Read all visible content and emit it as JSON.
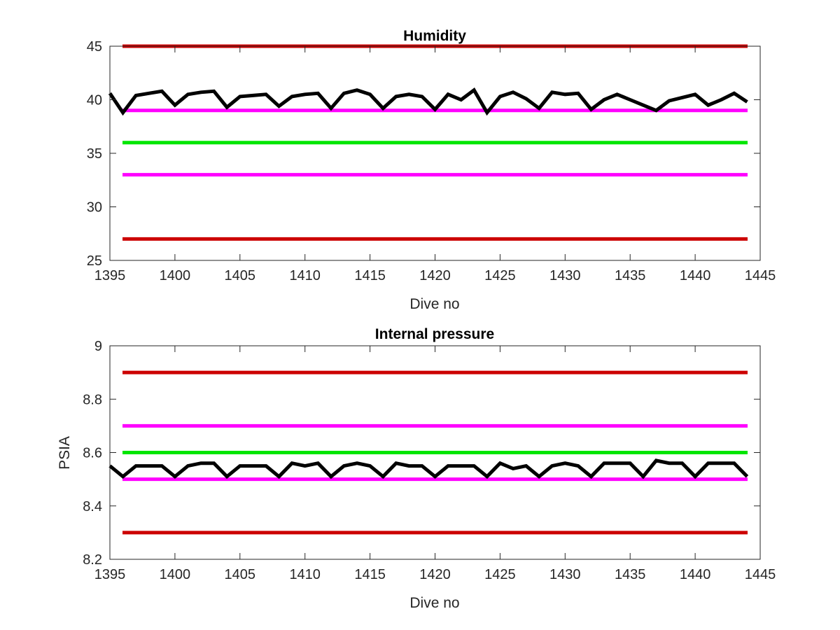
{
  "chart_data": [
    {
      "type": "line",
      "title": "Humidity",
      "xlabel": "Dive no",
      "ylabel": "",
      "xlim": [
        1395,
        1445
      ],
      "ylim": [
        25,
        45
      ],
      "xticks": [
        1395,
        1400,
        1405,
        1410,
        1415,
        1420,
        1425,
        1430,
        1435,
        1440,
        1445
      ],
      "yticks": [
        25,
        30,
        35,
        40,
        45
      ],
      "grid": false,
      "series": [
        {
          "color": "#000000",
          "x": [
            1395,
            1396,
            1397,
            1398,
            1399,
            1400,
            1401,
            1402,
            1403,
            1404,
            1405,
            1406,
            1407,
            1408,
            1409,
            1410,
            1411,
            1412,
            1413,
            1414,
            1415,
            1416,
            1417,
            1418,
            1419,
            1420,
            1421,
            1422,
            1423,
            1424,
            1425,
            1426,
            1427,
            1428,
            1429,
            1430,
            1431,
            1432,
            1433,
            1434,
            1435,
            1436,
            1437,
            1438,
            1439,
            1440,
            1441,
            1442,
            1443,
            1444
          ],
          "values": [
            40.6,
            38.8,
            40.4,
            40.6,
            40.8,
            39.5,
            40.5,
            40.7,
            40.8,
            39.3,
            40.3,
            40.4,
            40.5,
            39.4,
            40.3,
            40.5,
            40.6,
            39.2,
            40.6,
            40.9,
            40.5,
            39.2,
            40.3,
            40.5,
            40.3,
            39.1,
            40.5,
            40.0,
            40.9,
            38.8,
            40.3,
            40.7,
            40.1,
            39.2,
            40.7,
            40.5,
            40.6,
            39.1,
            40.0,
            40.5,
            40.0,
            39.5,
            39.0,
            39.9,
            40.2,
            40.5,
            39.5,
            40.0,
            40.6,
            39.8
          ]
        }
      ],
      "reference_lines": [
        {
          "y": 45,
          "color": "#cc0000"
        },
        {
          "y": 39,
          "color": "#ff00ff"
        },
        {
          "y": 36,
          "color": "#00e600"
        },
        {
          "y": 33,
          "color": "#ff00ff"
        },
        {
          "y": 27,
          "color": "#cc0000"
        }
      ]
    },
    {
      "type": "line",
      "title": "Internal pressure",
      "xlabel": "Dive no",
      "ylabel": "PSIA",
      "xlim": [
        1395,
        1445
      ],
      "ylim": [
        8.2,
        9.0
      ],
      "xticks": [
        1395,
        1400,
        1405,
        1410,
        1415,
        1420,
        1425,
        1430,
        1435,
        1440,
        1445
      ],
      "yticks": [
        8.2,
        8.4,
        8.6,
        8.8,
        9
      ],
      "ytick_labels": [
        "8.2",
        "8.4",
        "8.6",
        "8.8",
        "9"
      ],
      "grid": false,
      "series": [
        {
          "color": "#000000",
          "x": [
            1395,
            1396,
            1397,
            1398,
            1399,
            1400,
            1401,
            1402,
            1403,
            1404,
            1405,
            1406,
            1407,
            1408,
            1409,
            1410,
            1411,
            1412,
            1413,
            1414,
            1415,
            1416,
            1417,
            1418,
            1419,
            1420,
            1421,
            1422,
            1423,
            1424,
            1425,
            1426,
            1427,
            1428,
            1429,
            1430,
            1431,
            1432,
            1433,
            1434,
            1435,
            1436,
            1437,
            1438,
            1439,
            1440,
            1441,
            1442,
            1443,
            1444
          ],
          "values": [
            8.55,
            8.51,
            8.55,
            8.55,
            8.55,
            8.51,
            8.55,
            8.56,
            8.56,
            8.51,
            8.55,
            8.55,
            8.55,
            8.51,
            8.56,
            8.55,
            8.56,
            8.51,
            8.55,
            8.56,
            8.55,
            8.51,
            8.56,
            8.55,
            8.55,
            8.51,
            8.55,
            8.55,
            8.55,
            8.51,
            8.56,
            8.54,
            8.55,
            8.51,
            8.55,
            8.56,
            8.55,
            8.51,
            8.56,
            8.56,
            8.56,
            8.51,
            8.57,
            8.56,
            8.56,
            8.51,
            8.56,
            8.56,
            8.56,
            8.51
          ]
        }
      ],
      "reference_lines": [
        {
          "y": 8.9,
          "color": "#cc0000"
        },
        {
          "y": 8.7,
          "color": "#ff00ff"
        },
        {
          "y": 8.6,
          "color": "#00e600"
        },
        {
          "y": 8.5,
          "color": "#ff00ff"
        },
        {
          "y": 8.3,
          "color": "#cc0000"
        }
      ]
    }
  ]
}
